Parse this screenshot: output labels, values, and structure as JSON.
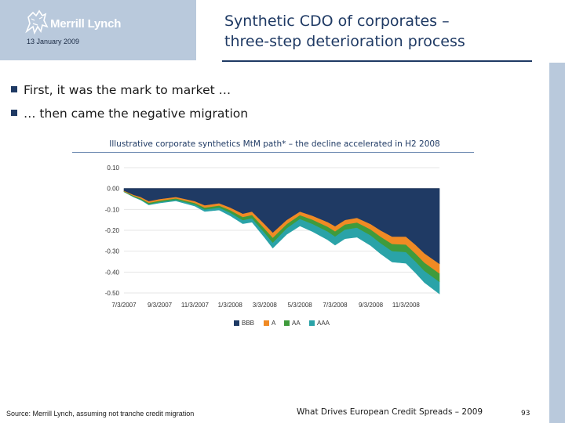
{
  "header": {
    "brand": "Merrill Lynch",
    "date": "13 January 2009",
    "title_line1": "Synthetic CDO of corporates –",
    "title_line2": "three-step deterioration process"
  },
  "bullets": [
    "First, it was the mark to market …",
    "… then came the negative migration"
  ],
  "chart_data": {
    "type": "area",
    "title": "Illustrative corporate synthetics MtM path* – the decline accelerated in H2 2008",
    "xlabel": "",
    "ylabel": "",
    "x_ticks": [
      "7/3/2007",
      "9/3/2007",
      "11/3/2007",
      "1/3/2008",
      "3/3/2008",
      "5/3/2008",
      "7/3/2008",
      "9/3/2008",
      "11/3/2008"
    ],
    "y_ticks": [
      "0.10",
      "0.00",
      "-0.10",
      "-0.20",
      "-0.30",
      "-0.40",
      "-0.50"
    ],
    "ylim": [
      -0.5,
      0.1
    ],
    "xlim": [
      "2007-07-03",
      "2008-12-31"
    ],
    "legend_position": "bottom",
    "x": [
      "2007-07-03",
      "2007-07-20",
      "2007-08-01",
      "2007-08-15",
      "2007-09-03",
      "2007-10-01",
      "2007-11-03",
      "2007-11-20",
      "2007-12-15",
      "2008-01-03",
      "2008-01-25",
      "2008-02-10",
      "2008-03-03",
      "2008-03-17",
      "2008-04-10",
      "2008-05-03",
      "2008-05-25",
      "2008-06-20",
      "2008-07-03",
      "2008-07-20",
      "2008-08-10",
      "2008-09-03",
      "2008-09-20",
      "2008-10-10",
      "2008-11-03",
      "2008-11-20",
      "2008-12-05",
      "2008-12-31"
    ],
    "series": [
      {
        "name": "BBB",
        "color": "#1f3a64",
        "values": [
          -0.01,
          -0.03,
          -0.04,
          -0.06,
          -0.05,
          -0.04,
          -0.06,
          -0.08,
          -0.07,
          -0.09,
          -0.12,
          -0.11,
          -0.17,
          -0.21,
          -0.15,
          -0.11,
          -0.13,
          -0.16,
          -0.18,
          -0.15,
          -0.14,
          -0.17,
          -0.2,
          -0.23,
          -0.23,
          -0.27,
          -0.31,
          -0.36
        ]
      },
      {
        "name": "A",
        "color": "#f08a24",
        "values": [
          -0.003,
          -0.005,
          -0.007,
          -0.008,
          -0.008,
          -0.007,
          -0.009,
          -0.011,
          -0.011,
          -0.013,
          -0.016,
          -0.016,
          -0.022,
          -0.025,
          -0.02,
          -0.017,
          -0.019,
          -0.022,
          -0.024,
          -0.022,
          -0.022,
          -0.026,
          -0.03,
          -0.035,
          -0.038,
          -0.042,
          -0.044,
          -0.046
        ]
      },
      {
        "name": "AA",
        "color": "#3f9b3c",
        "values": [
          -0.002,
          -0.004,
          -0.005,
          -0.006,
          -0.006,
          -0.006,
          -0.007,
          -0.009,
          -0.01,
          -0.012,
          -0.015,
          -0.016,
          -0.02,
          -0.023,
          -0.02,
          -0.018,
          -0.02,
          -0.023,
          -0.025,
          -0.024,
          -0.025,
          -0.028,
          -0.031,
          -0.034,
          -0.036,
          -0.038,
          -0.04,
          -0.04
        ]
      },
      {
        "name": "AAA",
        "color": "#2aa3a8",
        "values": [
          -0.001,
          -0.002,
          -0.003,
          -0.004,
          -0.005,
          -0.006,
          -0.008,
          -0.01,
          -0.012,
          -0.015,
          -0.017,
          -0.019,
          -0.023,
          -0.027,
          -0.03,
          -0.034,
          -0.037,
          -0.04,
          -0.042,
          -0.044,
          -0.046,
          -0.049,
          -0.051,
          -0.053,
          -0.054,
          -0.055,
          -0.056,
          -0.058
        ]
      }
    ]
  },
  "source": "Source: Merrill Lynch, assuming not tranche credit migration",
  "footer": "What Drives European Credit Spreads – 2009",
  "page_number": "93",
  "colors": {
    "header_bg": "#b9c9dc",
    "accent": "#1f3a64"
  }
}
